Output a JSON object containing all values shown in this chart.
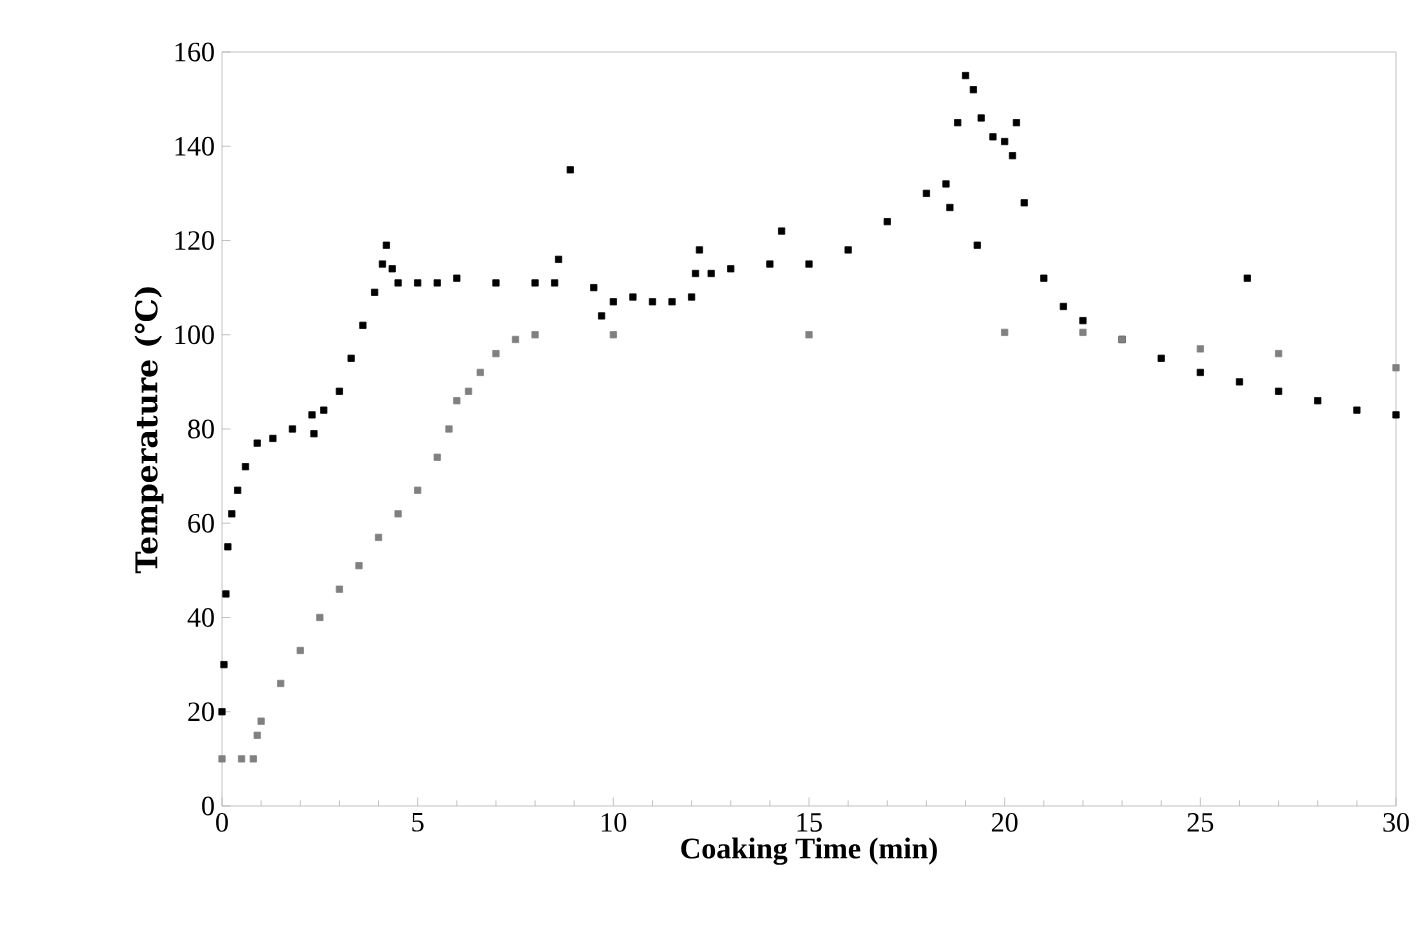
{
  "chart_data": {
    "type": "scatter",
    "xlabel": "Coaking Time (min)",
    "ylabel": "Temperature (℃)",
    "xlim": [
      0,
      30
    ],
    "ylim": [
      0,
      160
    ],
    "xticks": [
      0,
      5,
      10,
      15,
      20,
      25,
      30
    ],
    "yticks": [
      0,
      20,
      40,
      60,
      80,
      100,
      120,
      140,
      160
    ],
    "marker": "square",
    "series": [
      {
        "color": "#000000",
        "x": [
          0,
          0.05,
          0.1,
          0.15,
          0.25,
          0.4,
          0.6,
          0.9,
          1.3,
          1.8,
          2.3,
          2.35,
          2.6,
          3.0,
          3.3,
          3.6,
          3.9,
          4.1,
          4.2,
          4.35,
          4.5,
          5,
          5.5,
          6,
          7,
          8,
          8.5,
          8.6,
          8.9,
          9.5,
          9.7,
          10,
          10.5,
          11,
          11.5,
          12,
          12.1,
          12.2,
          12.5,
          13,
          14,
          14.3,
          15,
          16,
          17,
          18,
          18.5,
          18.6,
          18.8,
          19,
          19.2,
          19.3,
          19.4,
          19.7,
          20,
          20.2,
          20.3,
          20.5,
          21,
          21.5,
          22,
          23,
          24,
          25,
          26,
          26.2,
          27,
          28,
          29,
          30
        ],
        "values": [
          20,
          30,
          45,
          55,
          62,
          67,
          72,
          77,
          78,
          80,
          83,
          79,
          84,
          88,
          95,
          102,
          109,
          115,
          119,
          114,
          111,
          111,
          111,
          112,
          111,
          111,
          111,
          116,
          135,
          110,
          104,
          107,
          108,
          107,
          107,
          108,
          113,
          118,
          113,
          114,
          115,
          122,
          115,
          118,
          124,
          130,
          132,
          127,
          145,
          155,
          152,
          119,
          146,
          142,
          141,
          138,
          145,
          128,
          112,
          106,
          103,
          99,
          95,
          92,
          90,
          112,
          88,
          86,
          84,
          83
        ]
      },
      {
        "color": "#808080",
        "x": [
          0,
          0.5,
          0.8,
          0.9,
          1.0,
          1.5,
          2,
          2.5,
          3,
          3.5,
          4,
          4.5,
          5,
          5.5,
          5.8,
          6,
          6.3,
          6.6,
          7,
          7.5,
          8,
          10,
          15,
          20,
          22,
          23,
          25,
          27,
          30
        ],
        "values": [
          10,
          10,
          10,
          15,
          18,
          26,
          33,
          40,
          46,
          51,
          57,
          62,
          67,
          74,
          80,
          86,
          88,
          92,
          96,
          99,
          100,
          100,
          100,
          100.5,
          100.5,
          99,
          97,
          96,
          93
        ]
      }
    ]
  }
}
